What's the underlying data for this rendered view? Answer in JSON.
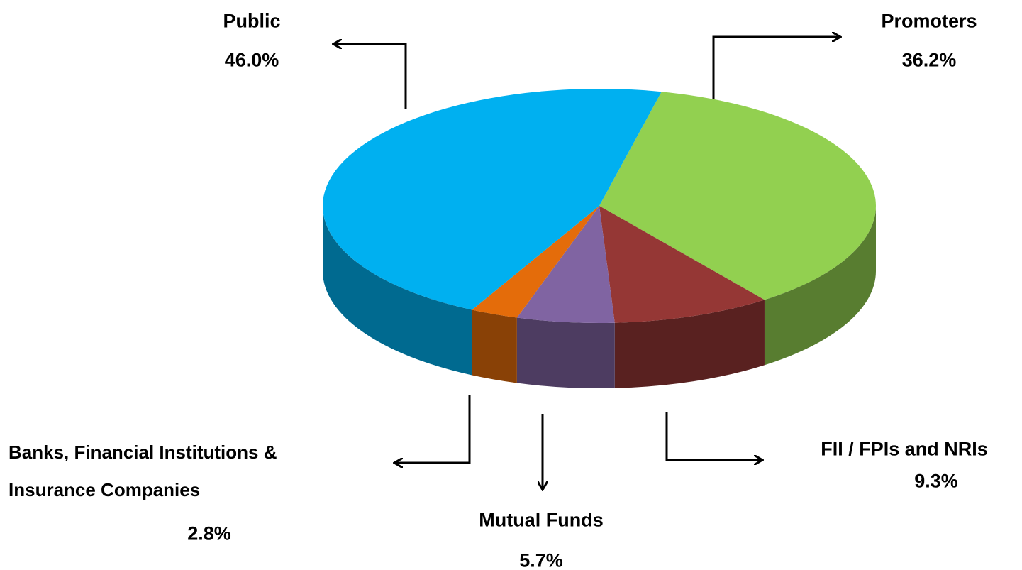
{
  "chart_data": {
    "type": "pie",
    "categories": [
      "Promoters",
      "FII / FPIs and NRIs",
      "Mutual Funds",
      "Banks, Financial Institutions & Insurance Companies",
      "Public"
    ],
    "values": [
      36.2,
      9.3,
      5.7,
      2.8,
      46.0
    ],
    "value_labels": [
      "36.2%",
      "9.3%",
      "5.7%",
      "2.8%",
      "46.0%"
    ],
    "colors": [
      "#92d050",
      "#953735",
      "#8064a2",
      "#e46c0a",
      "#00b0f0"
    ]
  }
}
